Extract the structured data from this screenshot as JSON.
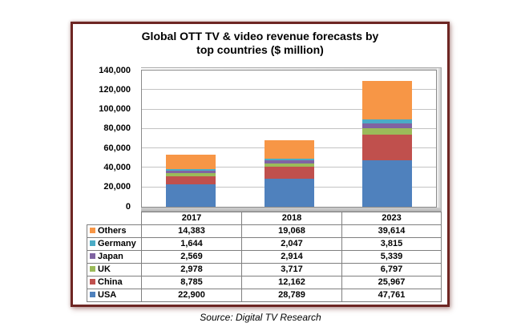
{
  "title": {
    "line1": "Global OTT TV & video revenue forecasts by",
    "line2": "top countries ($ million)"
  },
  "source": "Source: Digital TV Research",
  "colors": {
    "frame_border": "#6E2623",
    "gridline": "#C3C3C3",
    "plot_border": "#8A8A8A",
    "table_border": "#7F7F7F"
  },
  "chart_data": {
    "type": "bar",
    "stacked": true,
    "title": "Global OTT TV & video revenue forecasts by top countries ($ million)",
    "categories": [
      "2017",
      "2018",
      "2023"
    ],
    "series": [
      {
        "name": "USA",
        "color": "#4F81BD",
        "values": [
          22900,
          28789,
          47761
        ]
      },
      {
        "name": "China",
        "color": "#C0504D",
        "values": [
          8785,
          12162,
          25967
        ]
      },
      {
        "name": "UK",
        "color": "#9BBB59",
        "values": [
          2978,
          3717,
          6797
        ]
      },
      {
        "name": "Japan",
        "color": "#8064A2",
        "values": [
          2569,
          2914,
          5339
        ]
      },
      {
        "name": "Germany",
        "color": "#4BACC6",
        "values": [
          1644,
          2047,
          3815
        ]
      },
      {
        "name": "Others",
        "color": "#F79646",
        "values": [
          14383,
          19068,
          39614
        ]
      }
    ],
    "stack_order_bottom_to_top": [
      "USA",
      "China",
      "UK",
      "Japan",
      "Germany",
      "Others"
    ],
    "ylim": [
      0,
      140000
    ],
    "yticks": [
      0,
      20000,
      40000,
      60000,
      80000,
      100000,
      120000,
      140000
    ],
    "ytick_labels": [
      "0",
      "20,000",
      "40,000",
      "60,000",
      "80,000",
      "100,000",
      "120,000",
      "140,000"
    ],
    "grid": true,
    "legend_position": "data-table-below-axis"
  },
  "table": {
    "header": [
      "",
      "2017",
      "2018",
      "2023"
    ],
    "rows": [
      {
        "label": "Others",
        "color": "#F79646",
        "values": [
          "14,383",
          "19,068",
          "39,614"
        ]
      },
      {
        "label": "Germany",
        "color": "#4BACC6",
        "values": [
          "1,644",
          "2,047",
          "3,815"
        ]
      },
      {
        "label": "Japan",
        "color": "#8064A2",
        "values": [
          "2,569",
          "2,914",
          "5,339"
        ]
      },
      {
        "label": "UK",
        "color": "#9BBB59",
        "values": [
          "2,978",
          "3,717",
          "6,797"
        ]
      },
      {
        "label": "China",
        "color": "#C0504D",
        "values": [
          "8,785",
          "12,162",
          "25,967"
        ]
      },
      {
        "label": "USA",
        "color": "#4F81BD",
        "values": [
          "22,900",
          "28,789",
          "47,761"
        ]
      }
    ]
  }
}
